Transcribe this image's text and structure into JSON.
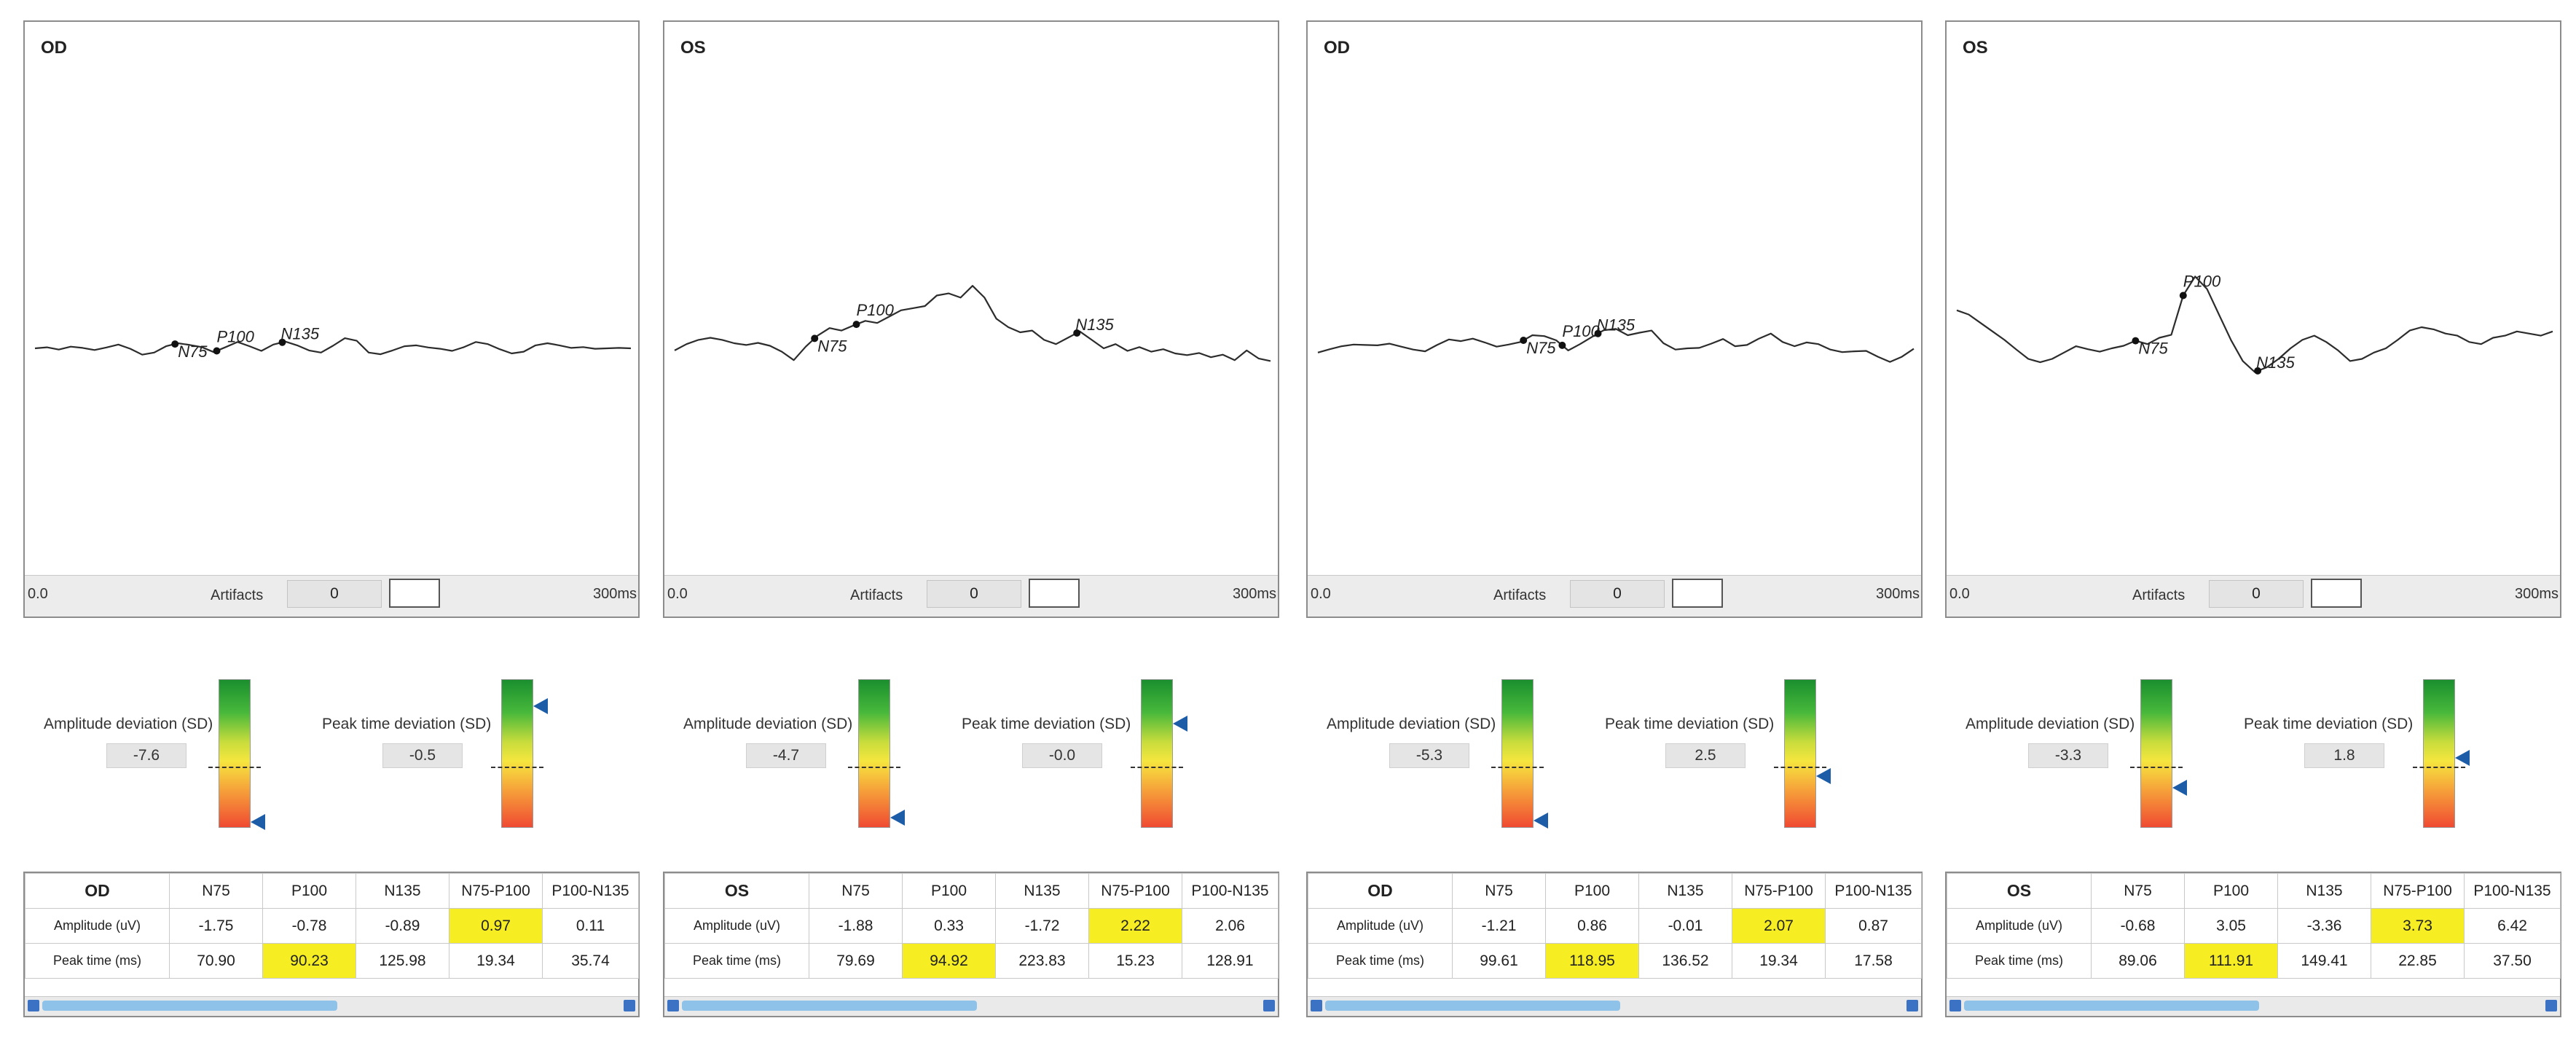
{
  "panels": [
    {
      "eye": "OD",
      "trace": [
        0.0,
        0.025,
        -0.03,
        0.04,
        0.01,
        -0.04,
        0.02,
        0.09,
        -0.01,
        -0.15,
        -0.1,
        0.05,
        0.12,
        0.08,
        0.03,
        -0.09,
        0.03,
        0.15,
        0.05,
        -0.06,
        0.09,
        0.16,
        0.07,
        -0.05,
        -0.1,
        0.06,
        0.24,
        0.18,
        -0.1,
        -0.14,
        -0.05,
        0.05,
        0.07,
        0.02,
        -0.01,
        -0.06,
        0.03,
        0.15,
        0.1,
        -0.02,
        -0.12,
        -0.08,
        0.07,
        0.12,
        0.07,
        0.01,
        0.03,
        -0.01,
        0.0,
        0.01,
        0.0
      ],
      "peaks": {
        "N75": 0.235,
        "P100": 0.305,
        "N135": 0.415
      },
      "axis": {
        "start": "0.0",
        "end": "300ms"
      },
      "artifacts_label": "Artifacts",
      "artifacts_value": "0",
      "amplitude": {
        "label": "Amplitude deviation (SD)",
        "value": "-7.6",
        "marker": 0.96
      },
      "peak_time": {
        "label": "Peak time deviation (SD)",
        "value": "-0.5",
        "marker": 0.18
      },
      "table": {
        "head": [
          "OD",
          "N75",
          "P100",
          "N135",
          "N75-P100",
          "P100-N135"
        ],
        "rows": [
          {
            "label": "Amplitude (uV)",
            "cells": [
              "-1.75",
              "-0.78",
              "-0.89",
              "0.97",
              "0.11"
            ]
          },
          {
            "label": "Peak time (ms)",
            "cells": [
              "70.90",
              "90.23",
              "125.98",
              "19.34",
              "35.74"
            ]
          }
        ],
        "highlight": [
          [
            0,
            3
          ],
          [
            1,
            1
          ]
        ]
      }
    },
    {
      "eye": "OS",
      "trace": [
        -0.05,
        0.1,
        0.2,
        0.25,
        0.2,
        0.12,
        0.08,
        0.13,
        0.06,
        -0.08,
        -0.28,
        0.04,
        0.3,
        0.48,
        0.42,
        0.54,
        0.65,
        0.6,
        0.75,
        0.9,
        0.95,
        1.0,
        1.25,
        1.3,
        1.2,
        1.48,
        1.2,
        0.7,
        0.5,
        0.38,
        0.42,
        0.2,
        0.1,
        0.25,
        0.4,
        0.2,
        0.0,
        0.1,
        -0.06,
        0.03,
        -0.08,
        -0.02,
        -0.12,
        -0.16,
        -0.11,
        -0.21,
        -0.15,
        -0.28,
        -0.05,
        -0.24,
        -0.3
      ],
      "peaks": {
        "N75": 0.235,
        "P100": 0.305,
        "N135": 0.675
      },
      "axis": {
        "start": "0.0",
        "end": "300ms"
      },
      "artifacts_label": "Artifacts",
      "artifacts_value": "0",
      "amplitude": {
        "label": "Amplitude deviation (SD)",
        "value": "-4.7",
        "marker": 0.93
      },
      "peak_time": {
        "label": "Peak time deviation (SD)",
        "value": "-0.0",
        "marker": 0.3
      },
      "table": {
        "head": [
          "OS",
          "N75",
          "P100",
          "N135",
          "N75-P100",
          "P100-N135"
        ],
        "rows": [
          {
            "label": "Amplitude (uV)",
            "cells": [
              "-1.88",
              "0.33",
              "-1.72",
              "2.22",
              "2.06"
            ]
          },
          {
            "label": "Peak time (ms)",
            "cells": [
              "79.69",
              "94.92",
              "223.83",
              "15.23",
              "128.91"
            ]
          }
        ],
        "highlight": [
          [
            0,
            3
          ],
          [
            1,
            1
          ]
        ]
      }
    },
    {
      "eye": "OD",
      "trace": [
        -0.1,
        -0.02,
        0.05,
        0.09,
        0.08,
        0.07,
        0.11,
        0.04,
        -0.03,
        -0.07,
        0.08,
        0.21,
        0.17,
        0.23,
        0.14,
        0.04,
        0.09,
        0.15,
        0.31,
        0.29,
        0.19,
        -0.05,
        0.1,
        0.27,
        0.43,
        0.46,
        0.31,
        0.37,
        0.42,
        0.12,
        -0.03,
        0.0,
        0.01,
        0.11,
        0.22,
        0.05,
        0.08,
        0.23,
        0.35,
        0.15,
        0.05,
        0.14,
        0.1,
        -0.03,
        -0.09,
        -0.07,
        -0.06,
        -0.2,
        -0.32,
        -0.2,
        -0.01
      ],
      "peaks": {
        "N75": 0.345,
        "P100": 0.41,
        "N135": 0.47
      },
      "axis": {
        "start": "0.0",
        "end": "300ms"
      },
      "artifacts_label": "Artifacts",
      "artifacts_value": "0",
      "amplitude": {
        "label": "Amplitude deviation (SD)",
        "value": "-5.3",
        "marker": 0.95
      },
      "peak_time": {
        "label": "Peak time deviation (SD)",
        "value": "2.5",
        "marker": 0.65
      },
      "table": {
        "head": [
          "OD",
          "N75",
          "P100",
          "N135",
          "N75-P100",
          "P100-N135"
        ],
        "rows": [
          {
            "label": "Amplitude (uV)",
            "cells": [
              "-1.21",
              "0.86",
              "-0.01",
              "2.07",
              "0.87"
            ]
          },
          {
            "label": "Peak time (ms)",
            "cells": [
              "99.61",
              "118.95",
              "136.52",
              "19.34",
              "17.58"
            ]
          }
        ],
        "highlight": [
          [
            0,
            3
          ],
          [
            1,
            1
          ]
        ]
      }
    },
    {
      "eye": "OS",
      "trace": [
        0.9,
        0.8,
        0.6,
        0.4,
        0.2,
        -0.03,
        -0.25,
        -0.33,
        -0.25,
        -0.1,
        0.05,
        -0.02,
        -0.08,
        0.0,
        0.06,
        0.18,
        0.1,
        0.25,
        0.32,
        1.25,
        1.7,
        1.4,
        0.8,
        0.2,
        -0.3,
        -0.56,
        -0.45,
        -0.25,
        0.0,
        0.2,
        0.3,
        0.15,
        -0.05,
        -0.3,
        -0.25,
        -0.1,
        0.0,
        0.2,
        0.42,
        0.5,
        0.45,
        0.35,
        0.3,
        0.15,
        0.1,
        0.25,
        0.3,
        0.4,
        0.35,
        0.3,
        0.4
      ],
      "peaks": {
        "N75": 0.3,
        "P100": 0.38,
        "N135": 0.505
      },
      "axis": {
        "start": "0.0",
        "end": "300ms"
      },
      "artifacts_label": "Artifacts",
      "artifacts_value": "0",
      "amplitude": {
        "label": "Amplitude deviation (SD)",
        "value": "-3.3",
        "marker": 0.73
      },
      "peak_time": {
        "label": "Peak time deviation (SD)",
        "value": "1.8",
        "marker": 0.53
      },
      "table": {
        "head": [
          "OS",
          "N75",
          "P100",
          "N135",
          "N75-P100",
          "P100-N135"
        ],
        "rows": [
          {
            "label": "Amplitude (uV)",
            "cells": [
              "-0.68",
              "3.05",
              "-3.36",
              "3.73",
              "6.42"
            ]
          },
          {
            "label": "Peak time (ms)",
            "cells": [
              "89.06",
              "111.91",
              "149.41",
              "22.85",
              "37.50"
            ]
          }
        ],
        "highlight": [
          [
            0,
            3
          ],
          [
            1,
            1
          ]
        ]
      }
    }
  ]
}
